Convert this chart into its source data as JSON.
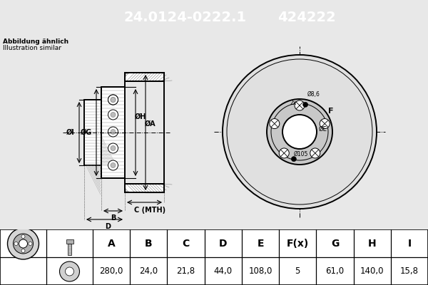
{
  "title_part": "24.0124-0222.1",
  "title_code": "424222",
  "subtitle1": "Abbildung ähnlich",
  "subtitle2": "Illustration similar",
  "header_bg": "#1a5fa8",
  "header_text_color": "#ffffff",
  "table_headers": [
    "A",
    "B",
    "C",
    "D",
    "E",
    "F(x)",
    "G",
    "H",
    "I"
  ],
  "table_values": [
    "280,0",
    "24,0",
    "21,8",
    "44,0",
    "108,0",
    "5",
    "61,0",
    "140,0",
    "15,8"
  ],
  "bg_color": "#e8e8e8",
  "drawing_bg": "#ffffff",
  "line_color": "#000000",
  "hatch_color": "#555555",
  "dim_color": "#000000"
}
